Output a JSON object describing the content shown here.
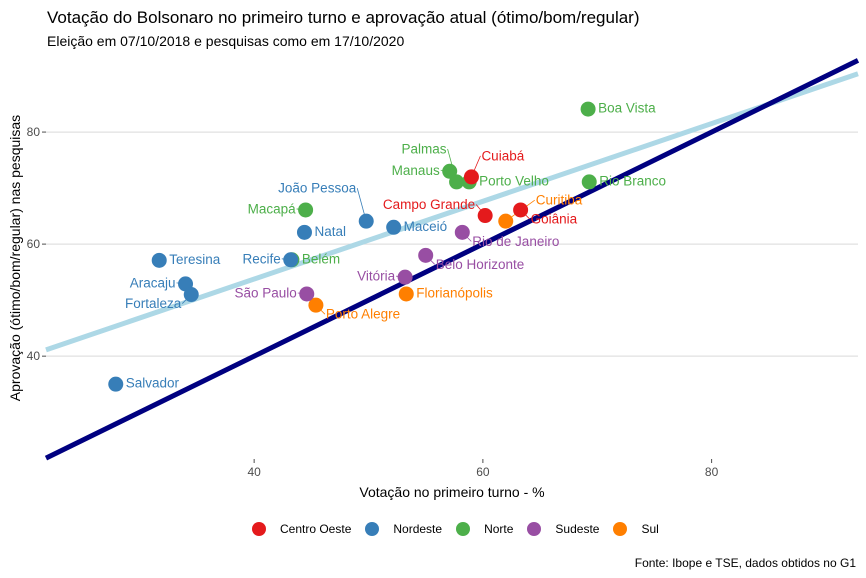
{
  "chart_data": {
    "type": "scatter",
    "title": "Votação do Bolsonaro no primeiro turno e aprovação atual (ótimo/bom/regular)",
    "subtitle": "Eleição em 07/10/2018 e pesquisas como em 17/10/2020",
    "xlabel": "Votação no primeiro turno - %",
    "ylabel": "Aprovação (ótimo/bom/regular) nas pesquisas",
    "xlim": [
      21.8,
      92.8
    ],
    "ylim": [
      22.0,
      93.4
    ],
    "x_ticks": [
      40,
      60,
      80
    ],
    "y_ticks": [
      40,
      60,
      80
    ],
    "grid": "horizontal-major",
    "legend_position": "bottom",
    "caption": "Fonte: Ibope e TSE, dados obtidos no G1",
    "groups": [
      {
        "name": "Centro Oeste",
        "color": "#e41a1c"
      },
      {
        "name": "Nordeste",
        "color": "#377eb8"
      },
      {
        "name": "Norte",
        "color": "#4daf4a"
      },
      {
        "name": "Sudeste",
        "color": "#984ea3"
      },
      {
        "name": "Sul",
        "color": "#ff7f00"
      }
    ],
    "points": [
      {
        "label": "Boa Vista",
        "group": "Norte",
        "x": 69.2,
        "y": 84.1
      },
      {
        "label": "Manaus",
        "group": "Norte",
        "x": 57.1,
        "y": 73.0
      },
      {
        "label": "Palmas",
        "group": "Norte",
        "x": 57.7,
        "y": 71.1
      },
      {
        "label": "Porto Velho",
        "group": "Norte",
        "x": 58.8,
        "y": 71.1
      },
      {
        "label": "Rio Branco",
        "group": "Norte",
        "x": 69.3,
        "y": 71.1
      },
      {
        "label": "Macapá",
        "group": "Norte",
        "x": 44.5,
        "y": 66.1
      },
      {
        "label": "Belém",
        "group": "Norte",
        "x": 43.3,
        "y": 57.2
      },
      {
        "label": "Cuiabá",
        "group": "Centro Oeste",
        "x": 59.0,
        "y": 72.0
      },
      {
        "label": "Goiânia",
        "group": "Centro Oeste",
        "x": 63.3,
        "y": 66.1
      },
      {
        "label": "Campo Grande",
        "group": "Centro Oeste",
        "x": 60.2,
        "y": 65.1
      },
      {
        "label": "Curitiba",
        "group": "Sul",
        "x": 62.0,
        "y": 64.1
      },
      {
        "label": "Florianópolis",
        "group": "Sul",
        "x": 53.3,
        "y": 51.1
      },
      {
        "label": "Porto Alegre",
        "group": "Sul",
        "x": 45.4,
        "y": 49.1
      },
      {
        "label": "Rio de Janeiro",
        "group": "Sudeste",
        "x": 58.2,
        "y": 62.1
      },
      {
        "label": "Belo Horizonte",
        "group": "Sudeste",
        "x": 55.0,
        "y": 58.0
      },
      {
        "label": "Vitória",
        "group": "Sudeste",
        "x": 53.2,
        "y": 54.1
      },
      {
        "label": "São Paulo",
        "group": "Sudeste",
        "x": 44.6,
        "y": 51.1
      },
      {
        "label": "João Pessoa",
        "group": "Nordeste",
        "x": 49.8,
        "y": 64.1
      },
      {
        "label": "Maceió",
        "group": "Nordeste",
        "x": 52.2,
        "y": 63.0
      },
      {
        "label": "Natal",
        "group": "Nordeste",
        "x": 44.4,
        "y": 62.1
      },
      {
        "label": "Recife",
        "group": "Nordeste",
        "x": 43.2,
        "y": 57.2
      },
      {
        "label": "Teresina",
        "group": "Nordeste",
        "x": 31.7,
        "y": 57.1
      },
      {
        "label": "Aracaju",
        "group": "Nordeste",
        "x": 34.0,
        "y": 52.9
      },
      {
        "label": "Fortaleza",
        "group": "Nordeste",
        "x": 34.5,
        "y": 51.0
      },
      {
        "label": "Salvador",
        "group": "Nordeste",
        "x": 27.9,
        "y": 35.0
      }
    ],
    "lines": [
      {
        "name": "identity (y = x)",
        "color": "#000080",
        "slope": 1.0,
        "intercept": 0.0
      },
      {
        "name": "linear fit",
        "color": "#add8e6",
        "slope": 0.694,
        "intercept": 26.0
      }
    ]
  }
}
